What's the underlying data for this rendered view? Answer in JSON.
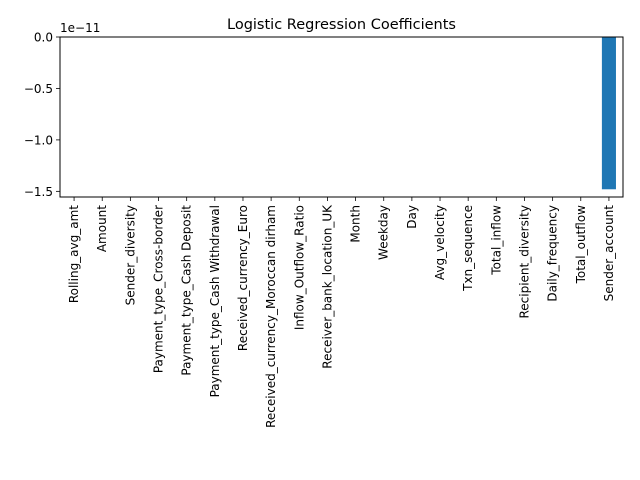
{
  "chart_data": {
    "type": "bar",
    "title": "Logistic Regression Coefficients",
    "xlabel": "",
    "ylabel": "",
    "offset_text": "1e−11",
    "scale_factor": 1e-11,
    "categories": [
      "Rolling_avg_amt",
      "Amount",
      "Sender_diversity",
      "Payment_type_Cross-border",
      "Payment_type_Cash Deposit",
      "Payment_type_Cash Withdrawal",
      "Received_currency_Euro",
      "Received_currency_Moroccan dirham",
      "Inflow_Outflow_Ratio",
      "Receiver_bank_location_UK",
      "Month",
      "Weekday",
      "Day",
      "Avg_velocity",
      "Txn_sequence",
      "Total_inflow",
      "Recipient_diversity",
      "Daily_frequency",
      "Total_outflow",
      "Sender_account"
    ],
    "values": [
      0,
      0,
      0,
      0,
      0,
      0,
      0,
      0,
      0,
      0,
      0,
      0,
      0,
      0,
      0,
      0,
      0,
      0,
      0,
      -1.48e-11
    ],
    "ylim": [
      -1.555e-11,
      0.0
    ],
    "yticks": [
      0.0,
      -0.5,
      -1.0,
      -1.5
    ],
    "ytick_labels": [
      "0.0",
      "−0.5",
      "−1.0",
      "−1.5"
    ],
    "bar_color": "#1f77b4",
    "grid": false,
    "legend": false
  }
}
